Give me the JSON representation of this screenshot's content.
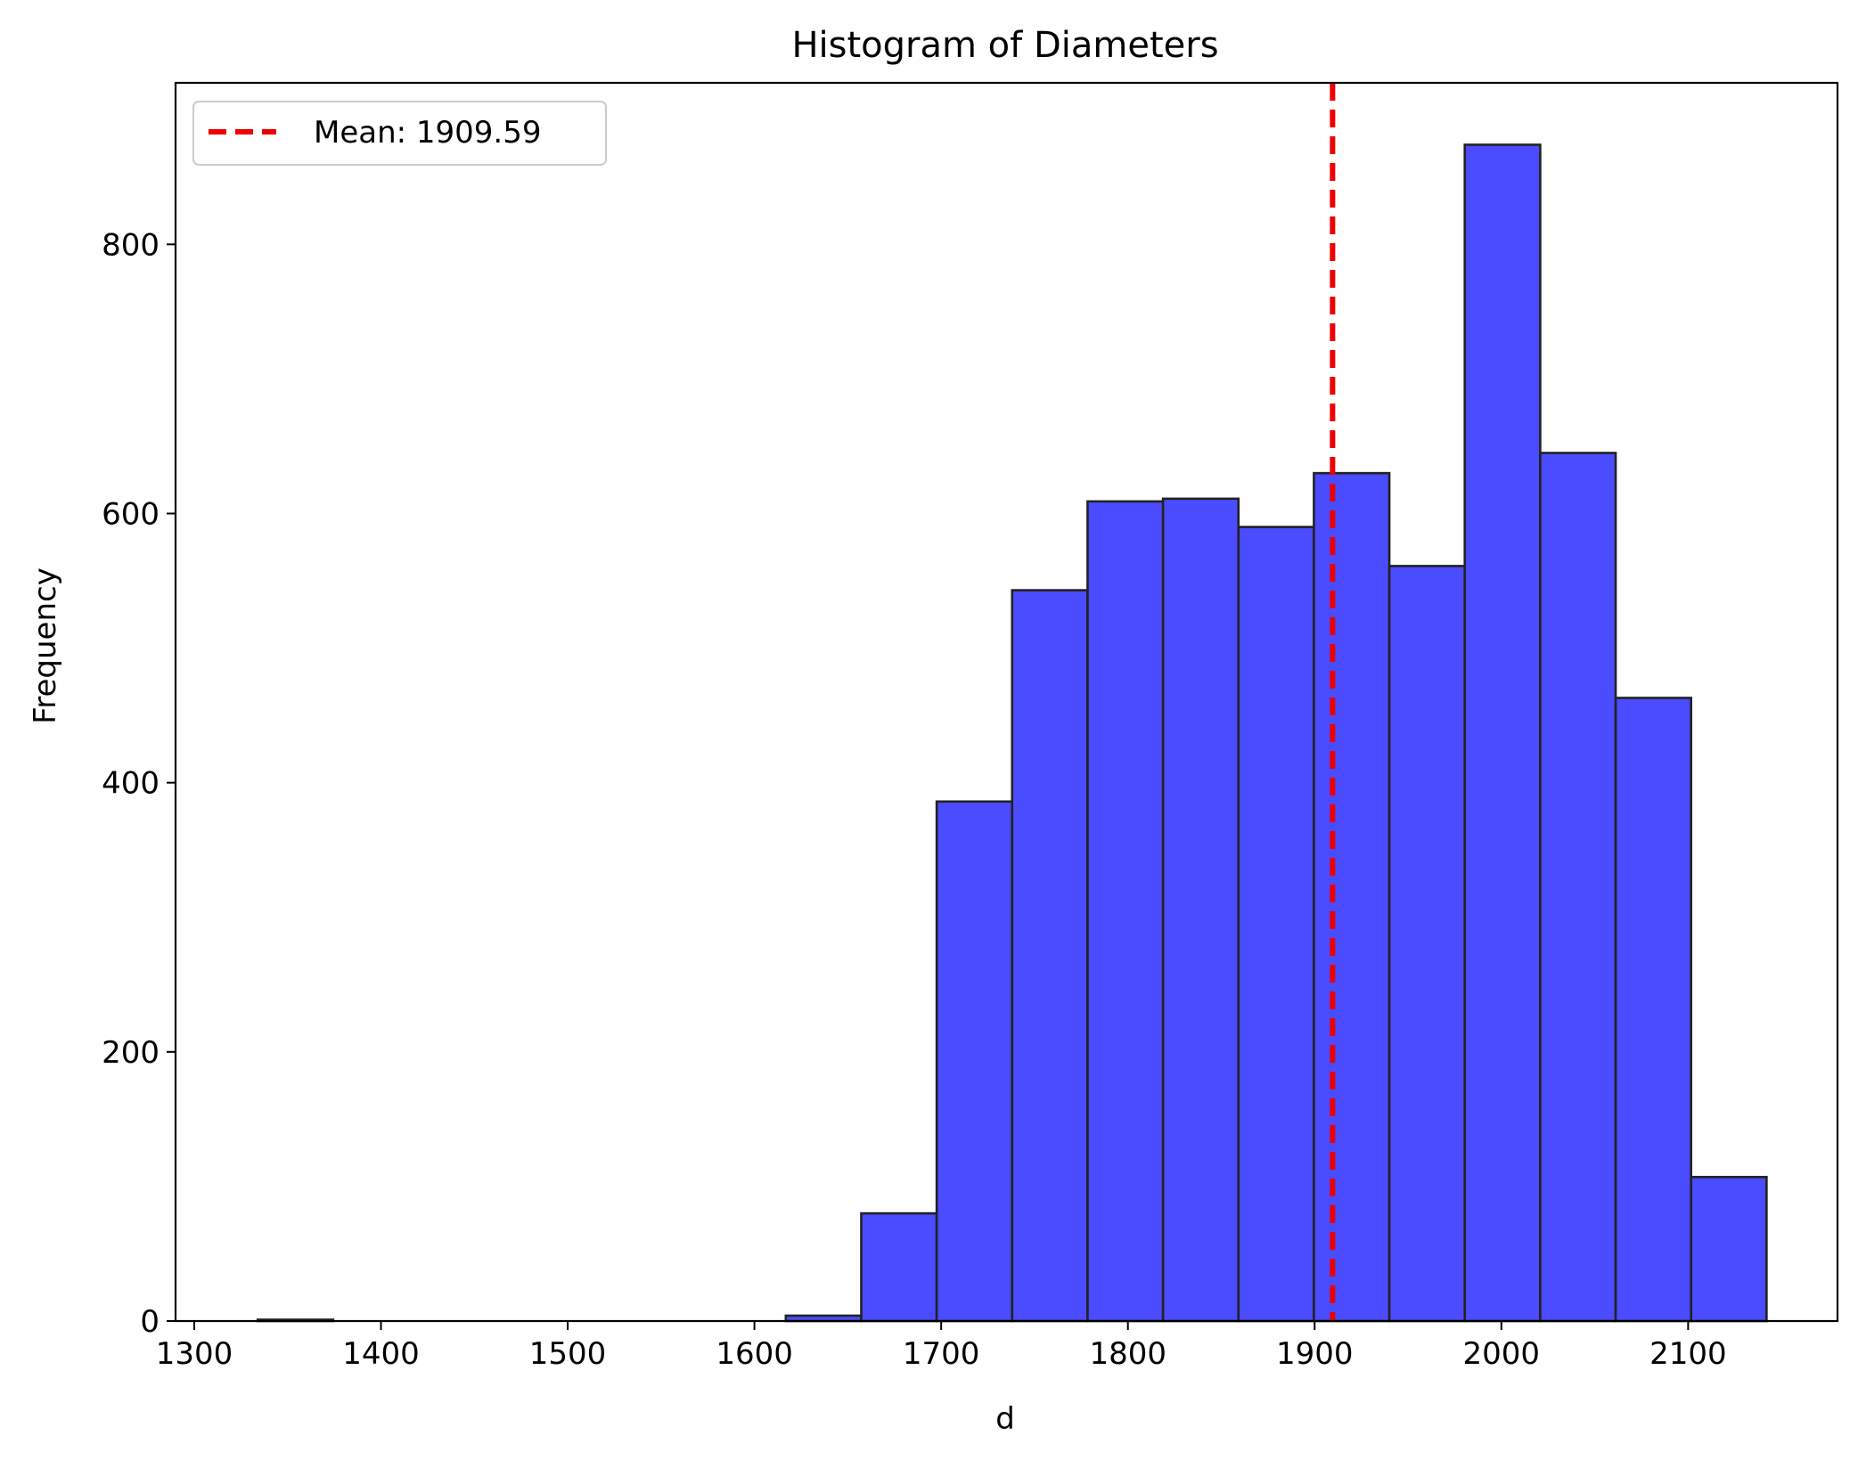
{
  "chart_data": {
    "type": "histogram",
    "title": "Histogram of Diameters",
    "xlabel": "d",
    "ylabel": "Frequency",
    "xlim": [
      1290,
      2180
    ],
    "ylim": [
      0,
      920
    ],
    "xticks": [
      1300,
      1400,
      1500,
      1600,
      1700,
      1800,
      1900,
      2000,
      2100
    ],
    "yticks": [
      0,
      200,
      400,
      600,
      800
    ],
    "bar_color": "#4b4bff",
    "bar_edge_color": "#222222",
    "bins": [
      {
        "start": 1334.0,
        "end": 1374.4,
        "count": 1
      },
      {
        "start": 1374.4,
        "end": 1414.8,
        "count": 0
      },
      {
        "start": 1414.8,
        "end": 1455.2,
        "count": 0
      },
      {
        "start": 1455.2,
        "end": 1495.6,
        "count": 0
      },
      {
        "start": 1495.6,
        "end": 1536.0,
        "count": 0
      },
      {
        "start": 1536.0,
        "end": 1576.4,
        "count": 0
      },
      {
        "start": 1576.4,
        "end": 1616.8,
        "count": 0
      },
      {
        "start": 1616.8,
        "end": 1657.2,
        "count": 4
      },
      {
        "start": 1657.2,
        "end": 1697.6,
        "count": 80
      },
      {
        "start": 1697.6,
        "end": 1738.0,
        "count": 386
      },
      {
        "start": 1738.0,
        "end": 1778.4,
        "count": 543
      },
      {
        "start": 1778.4,
        "end": 1818.8,
        "count": 609
      },
      {
        "start": 1818.8,
        "end": 1859.2,
        "count": 611
      },
      {
        "start": 1859.2,
        "end": 1899.6,
        "count": 590
      },
      {
        "start": 1899.6,
        "end": 1940.0,
        "count": 630
      },
      {
        "start": 1940.0,
        "end": 1980.4,
        "count": 561
      },
      {
        "start": 1980.4,
        "end": 2020.8,
        "count": 874
      },
      {
        "start": 2020.8,
        "end": 2061.2,
        "count": 645
      },
      {
        "start": 2061.2,
        "end": 2101.6,
        "count": 463
      },
      {
        "start": 2101.6,
        "end": 2142.0,
        "count": 107
      }
    ],
    "mean_line": {
      "value": 1909.59,
      "color": "#ee0000",
      "style": "dashed"
    },
    "legend": {
      "placement": "upper-left",
      "entries": [
        "Mean: 1909.59"
      ]
    }
  }
}
